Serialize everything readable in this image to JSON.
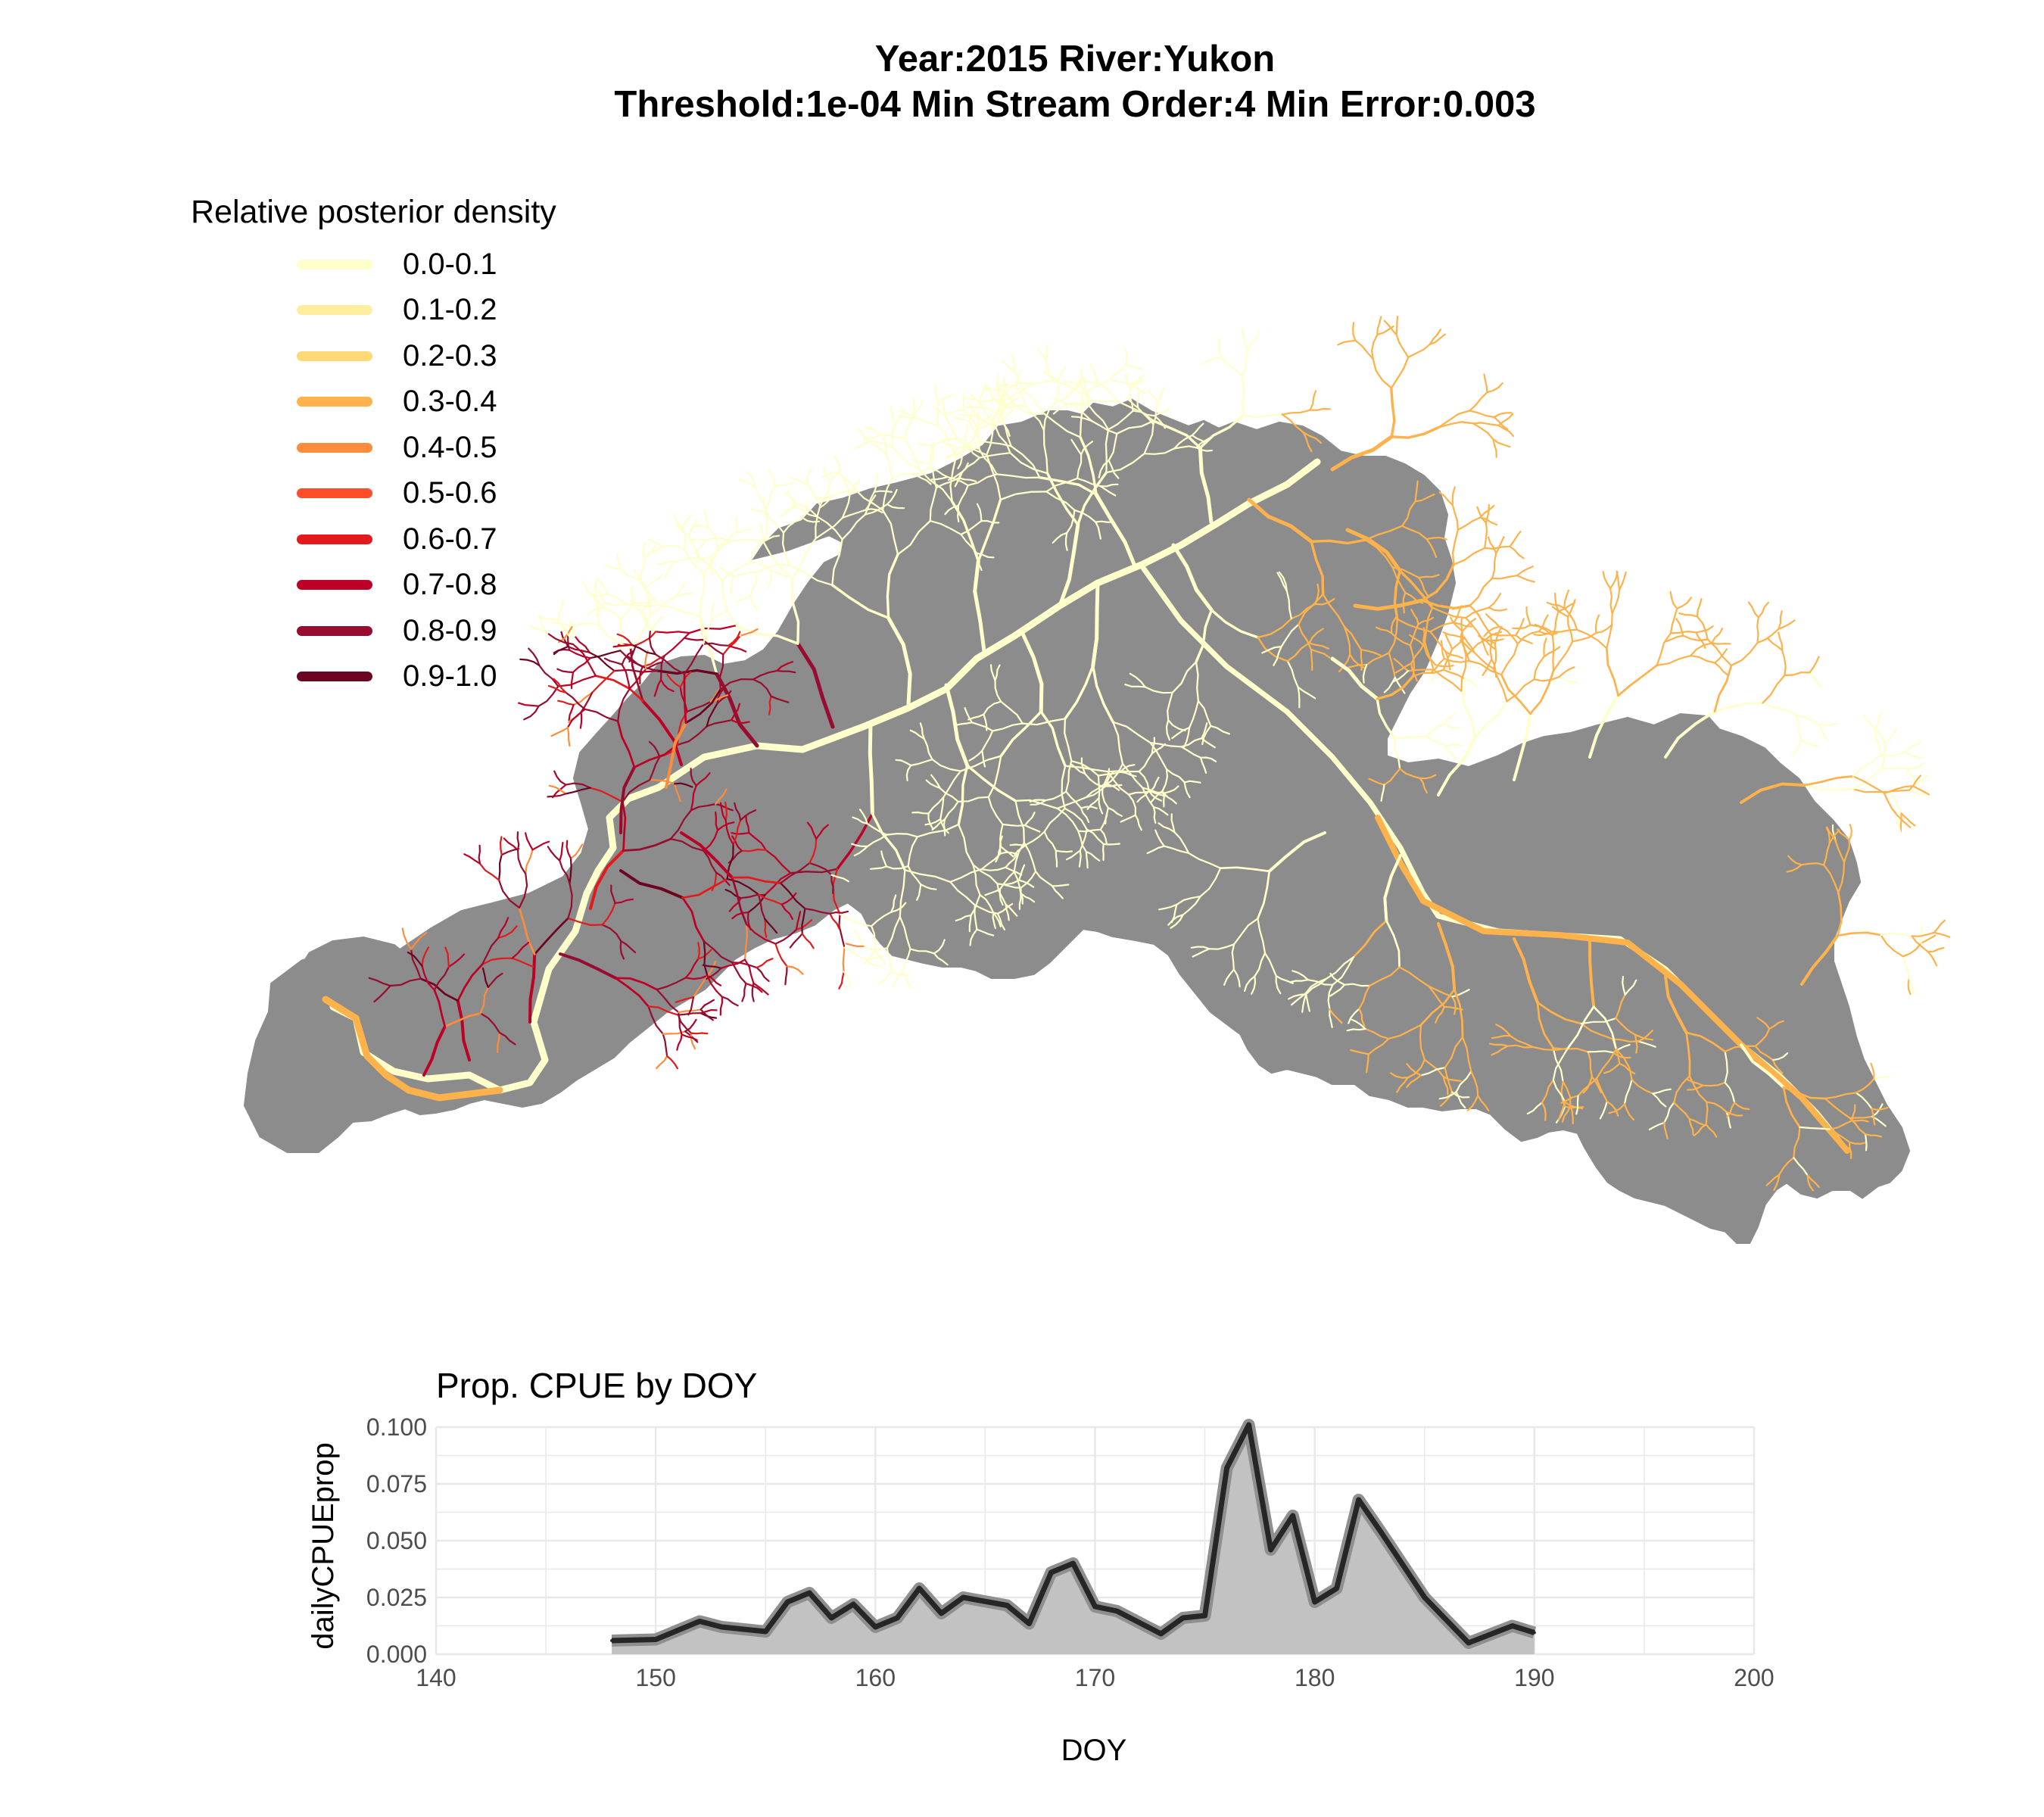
{
  "title": {
    "line1": "Year:2015 River:Yukon",
    "line2": "Threshold:1e-04 Min Stream Order:4 Min Error:0.003"
  },
  "legend": {
    "title": "Relative posterior density",
    "items": [
      {
        "label": "0.0-0.1",
        "color": "#ffffcc"
      },
      {
        "label": "0.1-0.2",
        "color": "#ffeda0"
      },
      {
        "label": "0.2-0.3",
        "color": "#fed976"
      },
      {
        "label": "0.3-0.4",
        "color": "#feb24c"
      },
      {
        "label": "0.4-0.5",
        "color": "#fd8d3c"
      },
      {
        "label": "0.5-0.6",
        "color": "#fc4e2a"
      },
      {
        "label": "0.6-0.7",
        "color": "#e31a1c"
      },
      {
        "label": "0.7-0.8",
        "color": "#bd0026"
      },
      {
        "label": "0.8-0.9",
        "color": "#970d2f"
      },
      {
        "label": "0.9-1.0",
        "color": "#6b0522"
      }
    ]
  },
  "map": {
    "basin_color": "#8c8c8c"
  },
  "chart_data": {
    "type": "area",
    "title": "Prop. CPUE by DOY",
    "xlabel": "DOY",
    "ylabel": "dailyCPUEprop",
    "xlim": [
      140,
      200
    ],
    "ylim": [
      0,
      0.1
    ],
    "x_ticks": [
      140,
      150,
      160,
      170,
      180,
      190,
      200
    ],
    "y_ticks": [
      0.0,
      0.025,
      0.05,
      0.075,
      0.1
    ],
    "y_tick_labels": [
      "0.000",
      "0.025",
      "0.050",
      "0.075",
      "0.100"
    ],
    "grid": true,
    "fill_color": "#c2c2c2",
    "line_color": "#262626",
    "series": [
      {
        "x": [
          148,
          150,
          152,
          153,
          155,
          156,
          157,
          158,
          159,
          160,
          161,
          162,
          163,
          164,
          166,
          167,
          168,
          169,
          170,
          171,
          172,
          173,
          174,
          175,
          176,
          177,
          178,
          179,
          180,
          181,
          182,
          183,
          185,
          187,
          189,
          190
        ],
        "values": [
          0.006,
          0.0065,
          0.0145,
          0.012,
          0.01,
          0.023,
          0.027,
          0.016,
          0.022,
          0.012,
          0.016,
          0.029,
          0.018,
          0.025,
          0.0215,
          0.0135,
          0.036,
          0.04,
          0.021,
          0.019,
          0.014,
          0.009,
          0.016,
          0.017,
          0.082,
          0.101,
          0.046,
          0.061,
          0.023,
          0.029,
          0.068,
          0.054,
          0.025,
          0.005,
          0.0125,
          0.0095
        ]
      }
    ]
  }
}
